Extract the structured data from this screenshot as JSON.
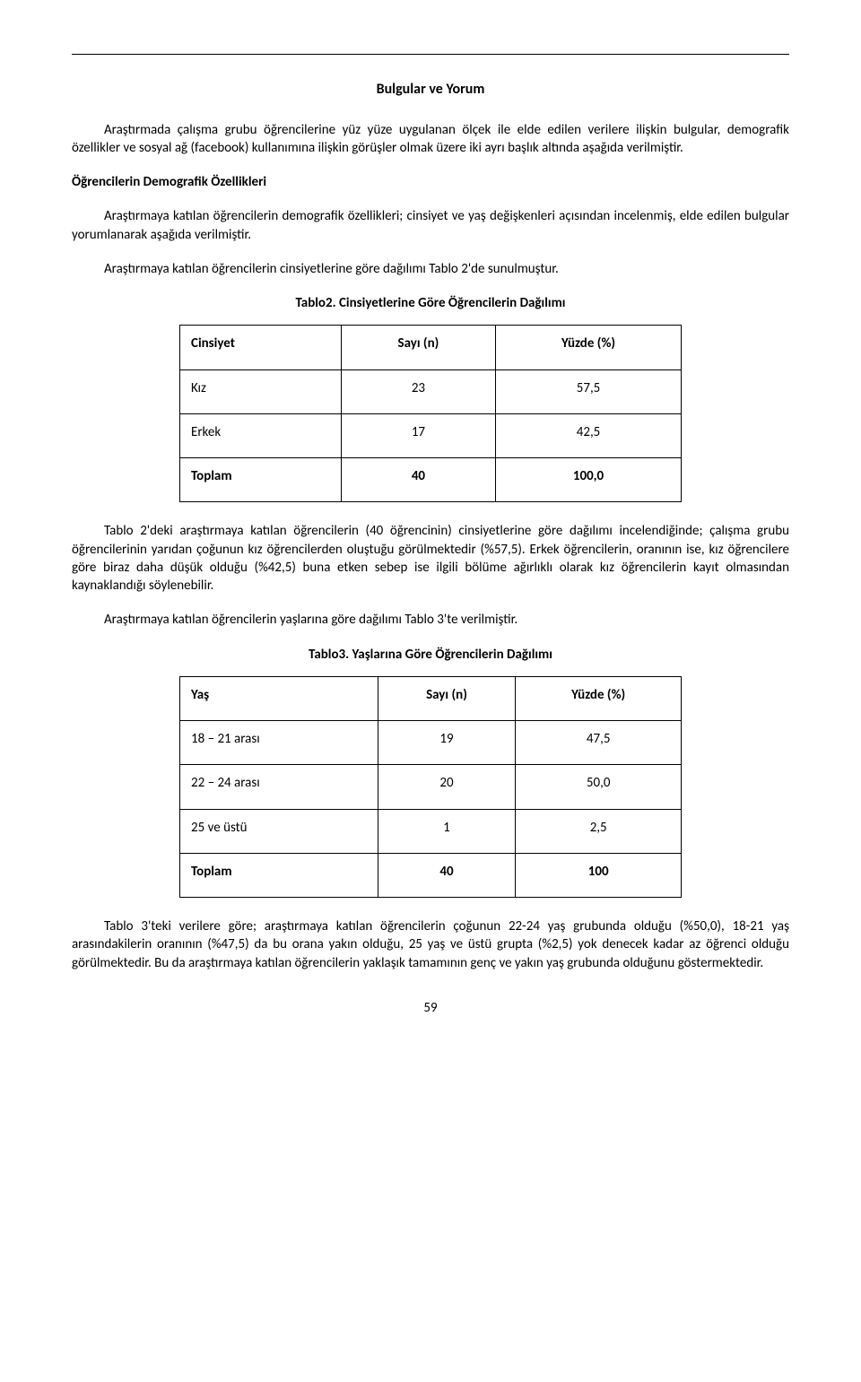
{
  "section_title": "Bulgular ve Yorum",
  "intro_paragraph": "Araştırmada çalışma grubu öğrencilerine yüz yüze uygulanan ölçek ile elde edilen verilere ilişkin bulgular, demografik özellikler ve sosyal ağ (facebook) kullanımına ilişkin görüşler olmak üzere iki ayrı başlık altında aşağıda verilmiştir.",
  "subheading1": "Öğrencilerin Demografik Özellikleri",
  "para1": "Araştırmaya katılan öğrencilerin demografik özellikleri; cinsiyet ve yaş değişkenleri açısından incelenmiş, elde edilen bulgular yorumlanarak aşağıda verilmiştir.",
  "para2": "Araştırmaya katılan öğrencilerin cinsiyetlerine göre dağılımı Tablo 2'de sunulmuştur.",
  "table2": {
    "caption": "Tablo2. Cinsiyetlerine Göre Öğrencilerin Dağılımı",
    "columns": [
      "Cinsiyet",
      "Sayı (n)",
      "Yüzde (%)"
    ],
    "rows": [
      {
        "label": "Kız",
        "n": "23",
        "pct": "57,5"
      },
      {
        "label": "Erkek",
        "n": "17",
        "pct": "42,5"
      }
    ],
    "total": {
      "label": "Toplam",
      "n": "40",
      "pct": "100,0"
    }
  },
  "para3": "Tablo 2'deki araştırmaya katılan öğrencilerin (40 öğrencinin) cinsiyetlerine göre dağılımı incelendiğinde; çalışma grubu öğrencilerinin yarıdan çoğunun kız öğrencilerden oluştuğu görülmektedir (%57,5). Erkek öğrencilerin, oranının ise, kız öğrencilere göre biraz daha düşük olduğu (%42,5) buna etken sebep ise ilgili bölüme ağırlıklı olarak kız öğrencilerin kayıt olmasından kaynaklandığı söylenebilir.",
  "para4": "Araştırmaya katılan öğrencilerin yaşlarına göre dağılımı Tablo 3'te verilmiştir.",
  "table3": {
    "caption": "Tablo3. Yaşlarına Göre Öğrencilerin Dağılımı",
    "columns": [
      "Yaş",
      "Sayı (n)",
      "Yüzde (%)"
    ],
    "rows": [
      {
        "label": "18 – 21 arası",
        "n": "19",
        "pct": "47,5"
      },
      {
        "label": "22 – 24 arası",
        "n": "20",
        "pct": "50,0"
      },
      {
        "label": "25 ve üstü",
        "n": "1",
        "pct": "2,5"
      }
    ],
    "total": {
      "label": "Toplam",
      "n": "40",
      "pct": "100"
    }
  },
  "para5": "Tablo 3'teki verilere göre; araştırmaya katılan öğrencilerin çoğunun 22-24 yaş grubunda olduğu (%50,0), 18-21 yaş arasındakilerin oranının (%47,5) da bu orana yakın olduğu, 25 yaş ve üstü grupta (%2,5) yok denecek kadar az öğrenci olduğu görülmektedir. Bu da araştırmaya katılan öğrencilerin yaklaşık tamamının genç ve yakın yaş grubunda olduğunu göstermektedir.",
  "page_number": "59"
}
